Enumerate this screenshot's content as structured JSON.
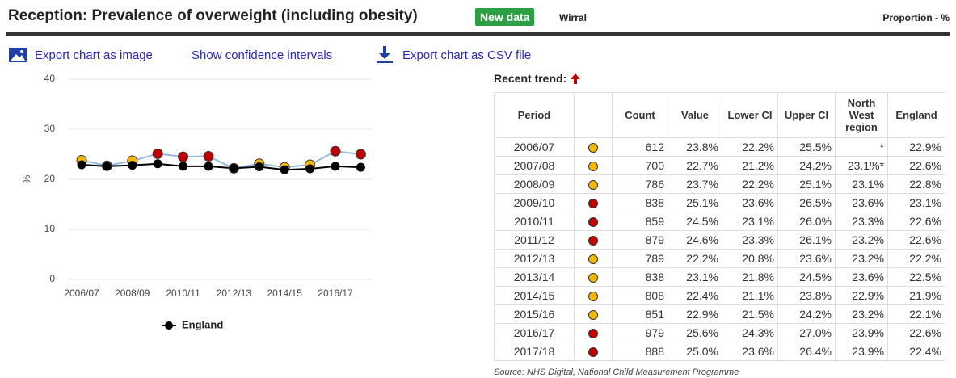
{
  "header": {
    "title": "Reception: Prevalence of overweight (including obesity)",
    "badge": "New data",
    "area": "Wirral",
    "unit": "Proportion - %"
  },
  "links": [
    "Export chart as image",
    "Show confidence intervals",
    "Export chart as CSV file"
  ],
  "chart_data": {
    "type": "line",
    "y_label": "%",
    "categories": [
      "2006/07",
      null,
      "2008/09",
      null,
      "2010/11",
      null,
      "2012/13",
      null,
      "2014/15",
      null,
      "2016/17",
      null
    ],
    "ylim": [
      0,
      40
    ],
    "yticks": [
      0,
      10,
      20,
      30,
      40
    ],
    "grid": true,
    "series": [
      {
        "color": "#95b8e3",
        "values": [
          23.8,
          22.7,
          23.7,
          25.1,
          24.5,
          24.6,
          22.2,
          23.1,
          22.4,
          22.9,
          25.6,
          25.0
        ],
        "point_colors": [
          "#f5b800",
          "#f5b800",
          "#f5b800",
          "#c00000",
          "#c00000",
          "#c00000",
          "#f5b800",
          "#f5b800",
          "#f5b800",
          "#f5b800",
          "#c00000",
          "#c00000"
        ]
      },
      {
        "name": "England",
        "color": "#000000",
        "values": [
          22.9,
          22.6,
          22.8,
          23.1,
          22.6,
          22.6,
          22.2,
          22.5,
          21.9,
          22.1,
          22.6,
          22.4
        ]
      }
    ]
  },
  "trend_label": "Recent trend:",
  "table": {
    "headers": [
      "Period",
      "",
      "Count",
      "Value",
      "Lower CI",
      "Upper CI",
      "North West region",
      "England"
    ],
    "rows": [
      [
        "2006/07",
        "612",
        "23.8%",
        "22.2%",
        "25.5%",
        "*",
        "22.9%"
      ],
      [
        "2007/08",
        "700",
        "22.7%",
        "21.2%",
        "24.2%",
        "23.1%*",
        "22.6%"
      ],
      [
        "2008/09",
        "786",
        "23.7%",
        "22.2%",
        "25.1%",
        "23.1%",
        "22.8%"
      ],
      [
        "2009/10",
        "838",
        "25.1%",
        "23.6%",
        "26.5%",
        "23.6%",
        "23.1%"
      ],
      [
        "2010/11",
        "859",
        "24.5%",
        "23.1%",
        "26.0%",
        "23.3%",
        "22.6%"
      ],
      [
        "2011/12",
        "879",
        "24.6%",
        "23.3%",
        "26.1%",
        "23.2%",
        "22.6%"
      ],
      [
        "2012/13",
        "789",
        "22.2%",
        "20.8%",
        "23.6%",
        "23.2%",
        "22.2%"
      ],
      [
        "2013/14",
        "838",
        "23.1%",
        "21.8%",
        "24.5%",
        "23.6%",
        "22.5%"
      ],
      [
        "2014/15",
        "808",
        "22.4%",
        "21.1%",
        "23.8%",
        "22.9%",
        "21.9%"
      ],
      [
        "2015/16",
        "851",
        "22.9%",
        "21.5%",
        "24.2%",
        "23.2%",
        "22.1%"
      ],
      [
        "2016/17",
        "979",
        "25.6%",
        "24.3%",
        "27.0%",
        "23.9%",
        "22.6%"
      ],
      [
        "2017/18",
        "888",
        "25.0%",
        "23.6%",
        "26.4%",
        "23.9%",
        "22.4%"
      ]
    ]
  },
  "source": "Source: NHS Digital, National Child Measurement Programme"
}
